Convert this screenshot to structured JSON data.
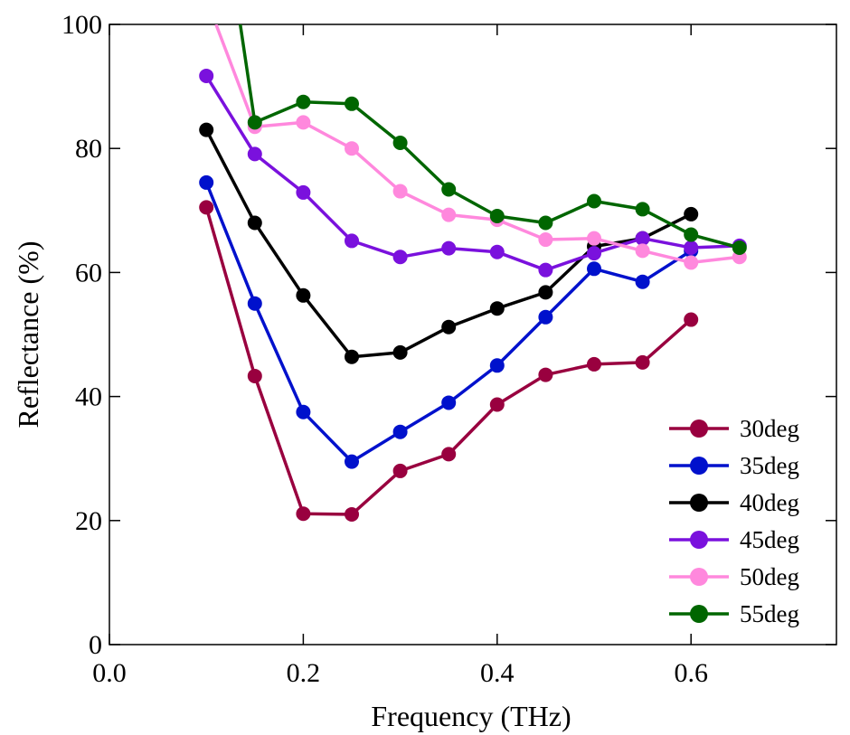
{
  "chart_data": {
    "type": "line",
    "title": "",
    "xlabel": "Frequency (THz)",
    "ylabel": "Reflectance (%)",
    "xlim": [
      0.0,
      0.75
    ],
    "ylim": [
      0,
      100
    ],
    "xticks": [
      0.0,
      0.2,
      0.4,
      0.6
    ],
    "xtick_labels": [
      "0.0",
      "0.2",
      "0.4",
      "0.6"
    ],
    "yticks": [
      0,
      20,
      40,
      60,
      80,
      100
    ],
    "ytick_labels": [
      "0",
      "20",
      "40",
      "60",
      "80",
      "100"
    ],
    "grid": false,
    "legend_position": "bottom-right",
    "series": [
      {
        "name": "30deg",
        "color": "#99003f",
        "x": [
          0.1,
          0.15,
          0.2,
          0.25,
          0.3,
          0.35,
          0.4,
          0.45,
          0.5,
          0.55,
          0.6
        ],
        "y": [
          70.5,
          43.3,
          21.1,
          21.0,
          28.0,
          30.7,
          38.7,
          43.5,
          45.2,
          45.5,
          52.4
        ]
      },
      {
        "name": "35deg",
        "color": "#0011cc",
        "x": [
          0.1,
          0.15,
          0.2,
          0.25,
          0.3,
          0.35,
          0.4,
          0.45,
          0.5,
          0.55,
          0.6
        ],
        "y": [
          74.5,
          55.0,
          37.5,
          29.5,
          34.3,
          39.0,
          45.0,
          52.8,
          60.6,
          58.5,
          63.5
        ]
      },
      {
        "name": "40deg",
        "color": "#000000",
        "x": [
          0.1,
          0.15,
          0.2,
          0.25,
          0.3,
          0.35,
          0.4,
          0.45,
          0.5,
          0.55,
          0.6
        ],
        "y": [
          83.0,
          68.0,
          56.3,
          46.4,
          47.1,
          51.2,
          54.2,
          56.8,
          64.2,
          65.5,
          69.4
        ]
      },
      {
        "name": "45deg",
        "color": "#7a11dd",
        "x": [
          0.1,
          0.15,
          0.2,
          0.25,
          0.3,
          0.35,
          0.4,
          0.45,
          0.5,
          0.55,
          0.6,
          0.65
        ],
        "y": [
          91.7,
          79.1,
          72.9,
          65.1,
          62.5,
          63.9,
          63.3,
          60.4,
          63.1,
          65.5,
          64.0,
          64.3
        ]
      },
      {
        "name": "50deg",
        "color": "#ff88dd",
        "x": [
          0.11,
          0.15,
          0.2,
          0.25,
          0.3,
          0.35,
          0.4,
          0.45,
          0.5,
          0.55,
          0.6,
          0.65
        ],
        "y": [
          100.0,
          83.5,
          84.2,
          80.0,
          73.1,
          69.3,
          68.5,
          65.3,
          65.5,
          63.5,
          61.6,
          62.5
        ]
      },
      {
        "name": "55deg",
        "color": "#006600",
        "x": [
          0.135,
          0.15,
          0.2,
          0.25,
          0.3,
          0.35,
          0.4,
          0.45,
          0.5,
          0.55,
          0.6,
          0.65
        ],
        "y": [
          100.0,
          84.2,
          87.5,
          87.2,
          80.9,
          73.4,
          69.1,
          68.0,
          71.5,
          70.2,
          66.1,
          64.0
        ]
      }
    ]
  }
}
